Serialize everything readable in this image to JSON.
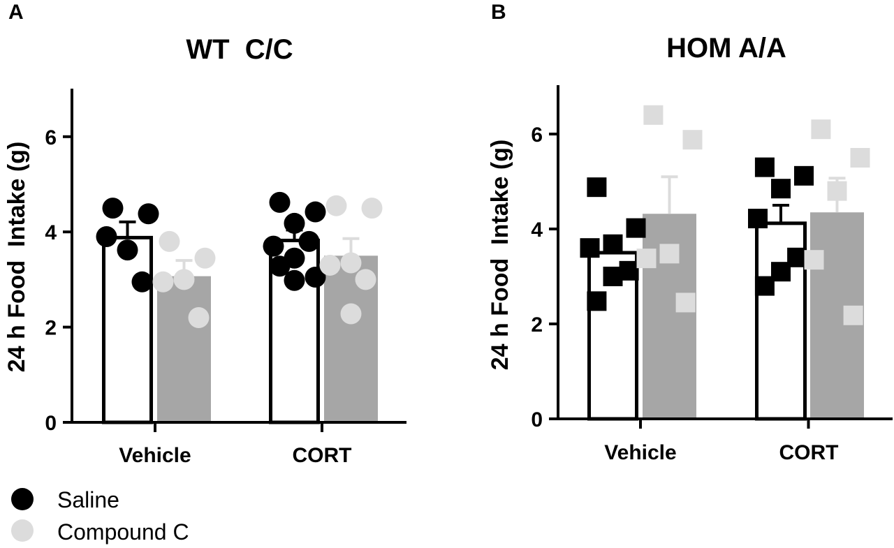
{
  "figure": {
    "legend": {
      "entries": [
        {
          "label": "Saline",
          "color": "#000000",
          "marker": "circle"
        },
        {
          "label": "Compound C",
          "color": "#dcdcdc",
          "marker": "circle"
        }
      ],
      "placement": "bottom-left"
    },
    "colors": {
      "saline_bar_fill": "#ffffff",
      "compound_bar_fill": "#a6a6a6",
      "saline_points": "#000000",
      "compound_points": "#dcdcdc",
      "compound_error_bar": "#dcdcdc"
    }
  },
  "chart_data": [
    {
      "panel_label": "A",
      "type": "bar",
      "title": "WT  C/C",
      "ylabel": "24 h Food  Intake (g)",
      "xlabel": "",
      "ylim": [
        0,
        7
      ],
      "yticks": [
        0,
        2,
        4,
        6
      ],
      "categories": [
        "Vehicle",
        "CORT"
      ],
      "marker": "circle",
      "series": [
        {
          "name": "Saline",
          "means": [
            3.88,
            3.82
          ],
          "sem": [
            0.33,
            0.22
          ],
          "points": [
            [
              4.5,
              4.38,
              3.62,
              3.9,
              2.95
            ],
            [
              4.62,
              4.42,
              4.18,
              3.7,
              3.8,
              3.45,
              3.28,
              3.05,
              2.98
            ]
          ]
        },
        {
          "name": "Compound C",
          "means": [
            3.07,
            3.5
          ],
          "sem": [
            0.33,
            0.36
          ],
          "points": [
            [
              3.8,
              3.45,
              3.0,
              2.95,
              2.2
            ],
            [
              4.55,
              4.5,
              3.35,
              3.3,
              3.0,
              2.28
            ]
          ]
        }
      ]
    },
    {
      "panel_label": "B",
      "type": "bar",
      "title": "HOM A/A",
      "ylabel": "24 h Food  Intake (g)",
      "xlabel": "",
      "ylim": [
        0,
        7
      ],
      "yticks": [
        0,
        2,
        4,
        6
      ],
      "categories": [
        "Vehicle",
        "CORT"
      ],
      "marker": "square",
      "series": [
        {
          "name": "Saline",
          "means": [
            3.5,
            4.12
          ],
          "sem": [
            0.1,
            0.38
          ],
          "points": [
            [
              4.88,
              4.02,
              3.68,
              3.6,
              3.12,
              3.0,
              2.48
            ],
            [
              5.3,
              5.12,
              4.85,
              4.22,
              3.4,
              3.1,
              2.8
            ]
          ]
        },
        {
          "name": "Compound C",
          "means": [
            4.32,
            4.35
          ],
          "sem": [
            0.78,
            0.72
          ],
          "points": [
            [
              6.4,
              5.88,
              3.48,
              3.38,
              2.45
            ],
            [
              6.1,
              5.5,
              4.8,
              3.35,
              2.18
            ]
          ]
        }
      ]
    }
  ]
}
